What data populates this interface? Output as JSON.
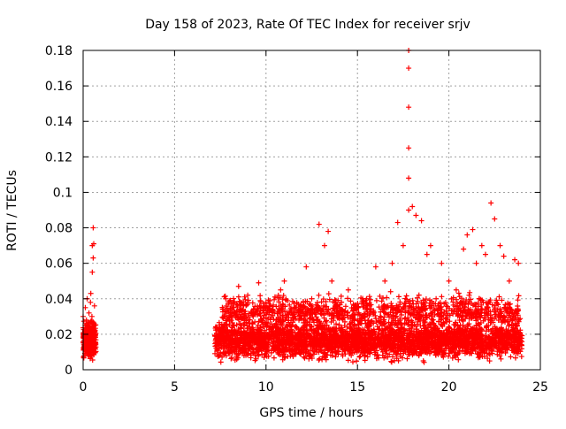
{
  "chart_data": {
    "type": "scatter",
    "title": "Day 158 of 2023, Rate Of TEC Index for receiver srjv",
    "xlabel": "GPS time / hours",
    "ylabel": "ROTI / TECUs",
    "xlim": [
      0,
      25
    ],
    "ylim": [
      0,
      0.18
    ],
    "xticks": [
      "0",
      "5",
      "10",
      "15",
      "20",
      "25"
    ],
    "yticks": [
      "0",
      "0.02",
      "0.04",
      "0.06",
      "0.08",
      "0.1",
      "0.12",
      "0.14",
      "0.16",
      "0.18"
    ],
    "grid": true,
    "marker": "+",
    "color": "#ff0000",
    "series": [
      {
        "x": [
          0.0,
          0.05,
          0.1,
          0.12,
          0.15,
          0.18,
          0.2,
          0.22,
          0.25,
          0.28,
          0.3,
          0.32,
          0.35,
          0.38,
          0.4,
          0.42,
          0.45,
          0.48,
          0.5,
          0.5,
          0.52,
          0.55,
          0.55,
          0.58,
          0.6,
          0.6,
          0.62,
          0.62,
          0.65,
          7.3,
          7.5,
          7.8,
          8.0,
          8.2,
          8.5,
          8.8,
          9.0,
          9.3,
          9.6,
          10.0,
          10.4,
          10.8,
          11.0,
          11.4,
          11.8,
          12.2,
          12.5,
          12.9,
          13.2,
          13.4,
          13.6,
          14.0,
          14.5,
          15.0,
          15.5,
          16.0,
          16.5,
          16.9,
          17.2,
          17.5,
          17.8,
          17.8,
          17.8,
          17.8,
          17.8,
          17.8,
          18.0,
          18.2,
          18.5,
          18.8,
          19.0,
          19.3,
          19.6,
          20.0,
          20.4,
          20.8,
          21.0,
          21.3,
          21.5,
          21.8,
          22.0,
          22.3,
          22.5,
          22.8,
          23.0,
          23.3,
          23.6,
          23.8
        ],
        "y": [
          0.03,
          0.012,
          0.022,
          0.035,
          0.015,
          0.028,
          0.01,
          0.04,
          0.018,
          0.025,
          0.008,
          0.032,
          0.02,
          0.014,
          0.038,
          0.043,
          0.016,
          0.03,
          0.055,
          0.07,
          0.024,
          0.063,
          0.08,
          0.071,
          0.018,
          0.026,
          0.012,
          0.036,
          0.022,
          0.015,
          0.022,
          0.04,
          0.018,
          0.035,
          0.047,
          0.025,
          0.042,
          0.03,
          0.049,
          0.038,
          0.02,
          0.045,
          0.05,
          0.033,
          0.028,
          0.058,
          0.04,
          0.082,
          0.07,
          0.078,
          0.05,
          0.03,
          0.045,
          0.035,
          0.04,
          0.058,
          0.05,
          0.06,
          0.083,
          0.07,
          0.18,
          0.17,
          0.148,
          0.125,
          0.108,
          0.09,
          0.092,
          0.087,
          0.084,
          0.065,
          0.07,
          0.04,
          0.06,
          0.05,
          0.045,
          0.068,
          0.076,
          0.079,
          0.06,
          0.07,
          0.065,
          0.094,
          0.085,
          0.07,
          0.064,
          0.05,
          0.062,
          0.06
        ]
      }
    ],
    "density_bands": [
      {
        "x_start": 0.0,
        "x_end": 0.7,
        "y_low": 0.003,
        "y_high": 0.03,
        "count": 320
      },
      {
        "x_start": 7.2,
        "x_end": 24.0,
        "y_low": 0.003,
        "y_high": 0.03,
        "count": 3200
      },
      {
        "x_start": 7.6,
        "x_end": 23.9,
        "y_low": 0.02,
        "y_high": 0.045,
        "count": 1100
      }
    ]
  }
}
